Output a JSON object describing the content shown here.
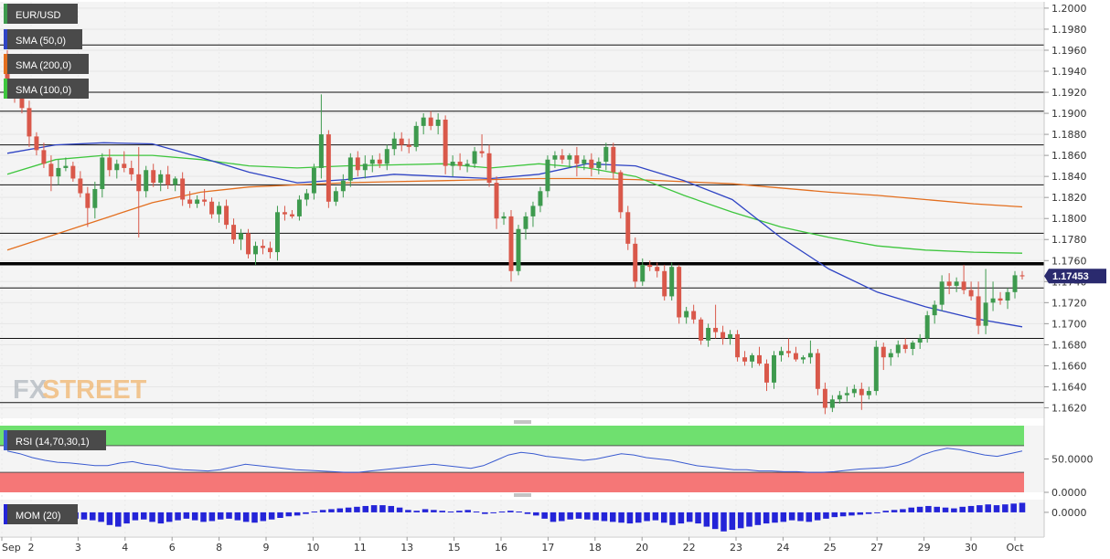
{
  "symbol": "EUR/USD",
  "legend": {
    "sma50": "SMA (50,0)",
    "sma200": "SMA (200,0)",
    "sma100": "SMA (100,0)",
    "rsi": "RSI (14,70,30,1)",
    "mom": "MOM (20)"
  },
  "logo": {
    "part1": "FX",
    "part2": "STREET"
  },
  "current_price": "1.17453",
  "colors": {
    "up": "#3e9a4e",
    "down": "#d9584a",
    "sma50": "#2f44c4",
    "sma100": "#3ec63e",
    "sma200": "#e36f1f",
    "rsi_line": "#3a5bd0",
    "rsi_top": "#6fe06f",
    "rsi_bottom": "#f57777",
    "mom_bar": "#2424d8",
    "price_label": "#2a2a6e"
  },
  "chart_data": [
    {
      "type": "candlestick",
      "title": "EUR/USD",
      "x_tick_labels": [
        "Sep",
        "2",
        "3",
        "4",
        "6",
        "8",
        "9",
        "10",
        "11",
        "13",
        "15",
        "16",
        "17",
        "18",
        "20",
        "22",
        "23",
        "24",
        "25",
        "27",
        "29",
        "30",
        "Oct"
      ],
      "y_tick_labels": [
        "1.2000",
        "1.1980",
        "1.1960",
        "1.1940",
        "1.1920",
        "1.1900",
        "1.1880",
        "1.1860",
        "1.1840",
        "1.1820",
        "1.1800",
        "1.1780",
        "1.1760",
        "1.1740",
        "1.1720",
        "1.1700",
        "1.1680",
        "1.1660",
        "1.1640",
        "1.1620"
      ],
      "ylim": [
        1.161,
        1.2006
      ],
      "horizontal_levels": [
        1.1965,
        1.192,
        1.1902,
        1.187,
        1.1832,
        1.1786,
        1.1734,
        1.1686,
        1.1625
      ],
      "key_level": 1.1757,
      "last_price": 1.17453,
      "candles": [
        [
          1.1938,
          1.196,
          1.1915,
          1.1922
        ],
        [
          1.1922,
          1.193,
          1.191,
          1.1918
        ],
        [
          1.1918,
          1.1932,
          1.19,
          1.1905
        ],
        [
          1.1905,
          1.1912,
          1.1868,
          1.1878
        ],
        [
          1.1878,
          1.1882,
          1.186,
          1.1865
        ],
        [
          1.1865,
          1.1872,
          1.1848,
          1.1852
        ],
        [
          1.1852,
          1.186,
          1.1826,
          1.184
        ],
        [
          1.184,
          1.1856,
          1.1832,
          1.1848
        ],
        [
          1.1848,
          1.1858,
          1.1845,
          1.185
        ],
        [
          1.185,
          1.1854,
          1.1835,
          1.1838
        ],
        [
          1.1838,
          1.1845,
          1.182,
          1.1824
        ],
        [
          1.1824,
          1.183,
          1.1792,
          1.181
        ],
        [
          1.181,
          1.1835,
          1.18,
          1.1828
        ],
        [
          1.1828,
          1.1862,
          1.182,
          1.1858
        ],
        [
          1.1858,
          1.1866,
          1.184,
          1.1846
        ],
        [
          1.1846,
          1.1856,
          1.1838,
          1.1852
        ],
        [
          1.1852,
          1.1864,
          1.1844,
          1.1848
        ],
        [
          1.1848,
          1.1855,
          1.1836,
          1.1842
        ],
        [
          1.1842,
          1.1868,
          1.1782,
          1.1826
        ],
        [
          1.1826,
          1.185,
          1.182,
          1.1846
        ],
        [
          1.1846,
          1.1852,
          1.183,
          1.1834
        ],
        [
          1.1834,
          1.1846,
          1.1826,
          1.1842
        ],
        [
          1.1842,
          1.185,
          1.1828,
          1.1832
        ],
        [
          1.1832,
          1.184,
          1.1826,
          1.1838
        ],
        [
          1.1838,
          1.1844,
          1.1812,
          1.1818
        ],
        [
          1.1818,
          1.1826,
          1.181,
          1.1814
        ],
        [
          1.1814,
          1.1822,
          1.181,
          1.1818
        ],
        [
          1.1818,
          1.1828,
          1.1812,
          1.1816
        ],
        [
          1.1816,
          1.182,
          1.18,
          1.1804
        ],
        [
          1.1804,
          1.1816,
          1.1796,
          1.1812
        ],
        [
          1.1812,
          1.1818,
          1.179,
          1.1794
        ],
        [
          1.1794,
          1.18,
          1.1776,
          1.178
        ],
        [
          1.178,
          1.179,
          1.177,
          1.1786
        ],
        [
          1.1786,
          1.179,
          1.1762,
          1.1766
        ],
        [
          1.1766,
          1.1778,
          1.1756,
          1.1774
        ],
        [
          1.1774,
          1.178,
          1.1766,
          1.1772
        ],
        [
          1.1772,
          1.1778,
          1.1762,
          1.1768
        ],
        [
          1.1768,
          1.1812,
          1.176,
          1.1806
        ],
        [
          1.1806,
          1.1812,
          1.1798,
          1.1804
        ],
        [
          1.1804,
          1.1808,
          1.18,
          1.1802
        ],
        [
          1.1802,
          1.1822,
          1.1798,
          1.1818
        ],
        [
          1.1818,
          1.1828,
          1.1812,
          1.1824
        ],
        [
          1.1824,
          1.1852,
          1.1818,
          1.1848
        ],
        [
          1.1848,
          1.1918,
          1.1838,
          1.188
        ],
        [
          1.188,
          1.1884,
          1.181,
          1.1816
        ],
        [
          1.1816,
          1.183,
          1.1812,
          1.1826
        ],
        [
          1.1826,
          1.1842,
          1.182,
          1.1836
        ],
        [
          1.1836,
          1.1862,
          1.183,
          1.1858
        ],
        [
          1.1858,
          1.1864,
          1.184,
          1.1846
        ],
        [
          1.1846,
          1.186,
          1.1838,
          1.1852
        ],
        [
          1.1852,
          1.186,
          1.1844,
          1.1856
        ],
        [
          1.1856,
          1.1862,
          1.1848,
          1.1852
        ],
        [
          1.1852,
          1.187,
          1.1846,
          1.1866
        ],
        [
          1.1866,
          1.1882,
          1.186,
          1.1876
        ],
        [
          1.1876,
          1.1882,
          1.1864,
          1.187
        ],
        [
          1.187,
          1.1876,
          1.1862,
          1.1868
        ],
        [
          1.1868,
          1.1892,
          1.1864,
          1.1888
        ],
        [
          1.1888,
          1.19,
          1.188,
          1.1896
        ],
        [
          1.1896,
          1.1902,
          1.1884,
          1.1888
        ],
        [
          1.1888,
          1.19,
          1.188,
          1.1894
        ],
        [
          1.1894,
          1.1898,
          1.1842,
          1.185
        ],
        [
          1.185,
          1.186,
          1.184,
          1.1854
        ],
        [
          1.1854,
          1.1862,
          1.1846,
          1.185
        ],
        [
          1.185,
          1.1856,
          1.1844,
          1.1852
        ],
        [
          1.1852,
          1.1868,
          1.1848,
          1.1864
        ],
        [
          1.1864,
          1.188,
          1.1858,
          1.1862
        ],
        [
          1.1862,
          1.187,
          1.183,
          1.1834
        ],
        [
          1.1834,
          1.184,
          1.179,
          1.18
        ],
        [
          1.18,
          1.1806,
          1.1794,
          1.1802
        ],
        [
          1.1802,
          1.1808,
          1.174,
          1.175
        ],
        [
          1.175,
          1.1794,
          1.1746,
          1.179
        ],
        [
          1.179,
          1.1806,
          1.178,
          1.1802
        ],
        [
          1.1802,
          1.1816,
          1.1792,
          1.1812
        ],
        [
          1.1812,
          1.183,
          1.1806,
          1.1826
        ],
        [
          1.1826,
          1.186,
          1.182,
          1.1856
        ],
        [
          1.1856,
          1.1864,
          1.1848,
          1.186
        ],
        [
          1.186,
          1.1866,
          1.1852,
          1.1856
        ],
        [
          1.1856,
          1.1862,
          1.1848,
          1.186
        ],
        [
          1.186,
          1.1868,
          1.184,
          1.1852
        ],
        [
          1.1852,
          1.186,
          1.1846,
          1.1856
        ],
        [
          1.1856,
          1.1862,
          1.184,
          1.1848
        ],
        [
          1.1848,
          1.1858,
          1.1842,
          1.1854
        ],
        [
          1.1854,
          1.1872,
          1.1846,
          1.1868
        ],
        [
          1.1868,
          1.1872,
          1.1838,
          1.1844
        ],
        [
          1.1844,
          1.1846,
          1.18,
          1.1806
        ],
        [
          1.1806,
          1.1812,
          1.177,
          1.1776
        ],
        [
          1.1776,
          1.1782,
          1.1734,
          1.174
        ],
        [
          1.174,
          1.1762,
          1.1736,
          1.1756
        ],
        [
          1.1756,
          1.176,
          1.175,
          1.1754
        ],
        [
          1.1754,
          1.1758,
          1.1744,
          1.175
        ],
        [
          1.175,
          1.1756,
          1.1722,
          1.1726
        ],
        [
          1.1726,
          1.1758,
          1.1722,
          1.1754
        ],
        [
          1.1754,
          1.1756,
          1.17,
          1.1706
        ],
        [
          1.1706,
          1.1716,
          1.17,
          1.1712
        ],
        [
          1.1712,
          1.1718,
          1.17,
          1.1704
        ],
        [
          1.1704,
          1.1706,
          1.168,
          1.1684
        ],
        [
          1.1684,
          1.17,
          1.1678,
          1.1696
        ],
        [
          1.1696,
          1.1718,
          1.1686,
          1.1692
        ],
        [
          1.1692,
          1.1698,
          1.168,
          1.1686
        ],
        [
          1.1686,
          1.1694,
          1.168,
          1.169
        ],
        [
          1.169,
          1.1694,
          1.1664,
          1.1668
        ],
        [
          1.1668,
          1.1674,
          1.166,
          1.1664
        ],
        [
          1.1664,
          1.1672,
          1.1658,
          1.167
        ],
        [
          1.167,
          1.1678,
          1.166,
          1.1662
        ],
        [
          1.1662,
          1.1666,
          1.1636,
          1.1644
        ],
        [
          1.1644,
          1.1674,
          1.1638,
          1.167
        ],
        [
          1.167,
          1.1678,
          1.1664,
          1.1674
        ],
        [
          1.1674,
          1.1686,
          1.1668,
          1.1672
        ],
        [
          1.1672,
          1.1678,
          1.1664,
          1.1666
        ],
        [
          1.1666,
          1.167,
          1.1662,
          1.1668
        ],
        [
          1.1668,
          1.1684,
          1.1662,
          1.1672
        ],
        [
          1.1672,
          1.1676,
          1.1632,
          1.1638
        ],
        [
          1.1638,
          1.1644,
          1.1614,
          1.162
        ],
        [
          1.162,
          1.1632,
          1.1616,
          1.1628
        ],
        [
          1.1628,
          1.1636,
          1.1624,
          1.1632
        ],
        [
          1.1632,
          1.164,
          1.1626,
          1.1634
        ],
        [
          1.1634,
          1.1642,
          1.163,
          1.1638
        ],
        [
          1.1638,
          1.1644,
          1.1618,
          1.1632
        ],
        [
          1.1632,
          1.164,
          1.1628,
          1.1636
        ],
        [
          1.1636,
          1.1684,
          1.1632,
          1.1678
        ],
        [
          1.1678,
          1.1682,
          1.1656,
          1.1668
        ],
        [
          1.1668,
          1.1676,
          1.166,
          1.1672
        ],
        [
          1.1672,
          1.1684,
          1.1668,
          1.168
        ],
        [
          1.168,
          1.1686,
          1.1672,
          1.1676
        ],
        [
          1.1676,
          1.1684,
          1.167,
          1.1682
        ],
        [
          1.1682,
          1.169,
          1.1676,
          1.1686
        ],
        [
          1.1686,
          1.1712,
          1.1682,
          1.1708
        ],
        [
          1.1708,
          1.1722,
          1.17,
          1.1718
        ],
        [
          1.1718,
          1.1746,
          1.1712,
          1.174
        ],
        [
          1.174,
          1.1748,
          1.1728,
          1.1736
        ],
        [
          1.1736,
          1.1744,
          1.173,
          1.174
        ],
        [
          1.174,
          1.1756,
          1.1728,
          1.1732
        ],
        [
          1.1732,
          1.174,
          1.1722,
          1.1726
        ],
        [
          1.1726,
          1.174,
          1.169,
          1.1698
        ],
        [
          1.1698,
          1.1752,
          1.169,
          1.172
        ],
        [
          1.172,
          1.174,
          1.1712,
          1.1724
        ],
        [
          1.1724,
          1.173,
          1.1718,
          1.1722
        ],
        [
          1.1722,
          1.1734,
          1.1714,
          1.173
        ],
        [
          1.173,
          1.175,
          1.1724,
          1.1746
        ],
        [
          1.1746,
          1.175,
          1.1742,
          1.1745
        ]
      ],
      "sma50": [
        1.1862,
        1.187,
        1.1872,
        1.1871,
        1.1858,
        1.1844,
        1.1834,
        1.1837,
        1.1842,
        1.184,
        1.1838,
        1.1842,
        1.1852,
        1.185,
        1.1836,
        1.1818,
        1.1782,
        1.1752,
        1.173,
        1.1716,
        1.1705,
        1.1697
      ],
      "sma100": [
        1.1842,
        1.1856,
        1.186,
        1.186,
        1.1856,
        1.185,
        1.1848,
        1.185,
        1.1851,
        1.1852,
        1.1848,
        1.1852,
        1.1848,
        1.184,
        1.1822,
        1.1806,
        1.1792,
        1.1782,
        1.1774,
        1.177,
        1.1768,
        1.1767
      ],
      "sma200": [
        1.177,
        1.1785,
        1.18,
        1.1815,
        1.1825,
        1.183,
        1.1832,
        1.1834,
        1.1835,
        1.1836,
        1.1837,
        1.1838,
        1.1838,
        1.1837,
        1.1835,
        1.1833,
        1.1829,
        1.1825,
        1.1822,
        1.1818,
        1.1814,
        1.1811
      ]
    },
    {
      "type": "line",
      "title": "RSI (14,70,30,1)",
      "y_tick_labels": [
        "50.0000",
        "0.0000"
      ],
      "ylim": [
        0,
        100
      ],
      "values": [
        62,
        58,
        52,
        48,
        45,
        44,
        42,
        40,
        40,
        44,
        46,
        42,
        40,
        36,
        34,
        33,
        32,
        34,
        38,
        42,
        40,
        38,
        36,
        34,
        33,
        32,
        31,
        30,
        30,
        32,
        34,
        36,
        38,
        40,
        42,
        40,
        38,
        36,
        40,
        48,
        56,
        60,
        58,
        54,
        52,
        50,
        48,
        50,
        54,
        58,
        56,
        52,
        50,
        48,
        44,
        40,
        38,
        36,
        34,
        34,
        32,
        32,
        31,
        31,
        30,
        30,
        31,
        33,
        35,
        36,
        37,
        40,
        46,
        56,
        62,
        66,
        64,
        60,
        56,
        54,
        58,
        62
      ]
    },
    {
      "type": "bar",
      "title": "MOM (20)",
      "y_tick_labels": [
        "0.0000"
      ],
      "ylim": [
        -0.03,
        0.016
      ],
      "values": [
        -0.006,
        -0.008,
        -0.009,
        -0.007,
        -0.005,
        -0.004,
        -0.005,
        -0.006,
        -0.008,
        -0.009,
        -0.01,
        -0.012,
        -0.016,
        -0.018,
        -0.014,
        -0.01,
        -0.009,
        -0.012,
        -0.014,
        -0.012,
        -0.01,
        -0.008,
        -0.01,
        -0.012,
        -0.011,
        -0.009,
        -0.008,
        -0.01,
        -0.012,
        -0.013,
        -0.011,
        -0.009,
        -0.007,
        -0.005,
        -0.004,
        -0.002,
        0.001,
        0.003,
        0.004,
        0.005,
        0.006,
        0.007,
        0.008,
        0.009,
        0.009,
        0.008,
        0.006,
        0.003,
        0.002,
        0.004,
        0.003,
        0.002,
        0.001,
        0.002,
        0.003,
        0.001,
        -0.002,
        -0.001,
        0.001,
        0.002,
        0.001,
        -0.002,
        -0.004,
        -0.008,
        -0.012,
        -0.011,
        -0.009,
        -0.008,
        -0.009,
        -0.01,
        -0.011,
        -0.012,
        -0.013,
        -0.014,
        -0.013,
        -0.011,
        -0.01,
        -0.013,
        -0.016,
        -0.014,
        -0.012,
        -0.014,
        -0.018,
        -0.021,
        -0.024,
        -0.022,
        -0.02,
        -0.018,
        -0.016,
        -0.014,
        -0.013,
        -0.012,
        -0.01,
        -0.011,
        -0.012,
        -0.01,
        -0.008,
        -0.006,
        -0.005,
        -0.004,
        -0.003,
        -0.002,
        -0.001,
        0.002,
        0.003,
        0.004,
        0.006,
        0.007,
        0.008,
        0.007,
        0.006,
        0.005,
        0.007,
        0.008,
        0.009,
        0.01,
        0.009,
        0.01,
        0.011,
        0.012
      ]
    }
  ]
}
